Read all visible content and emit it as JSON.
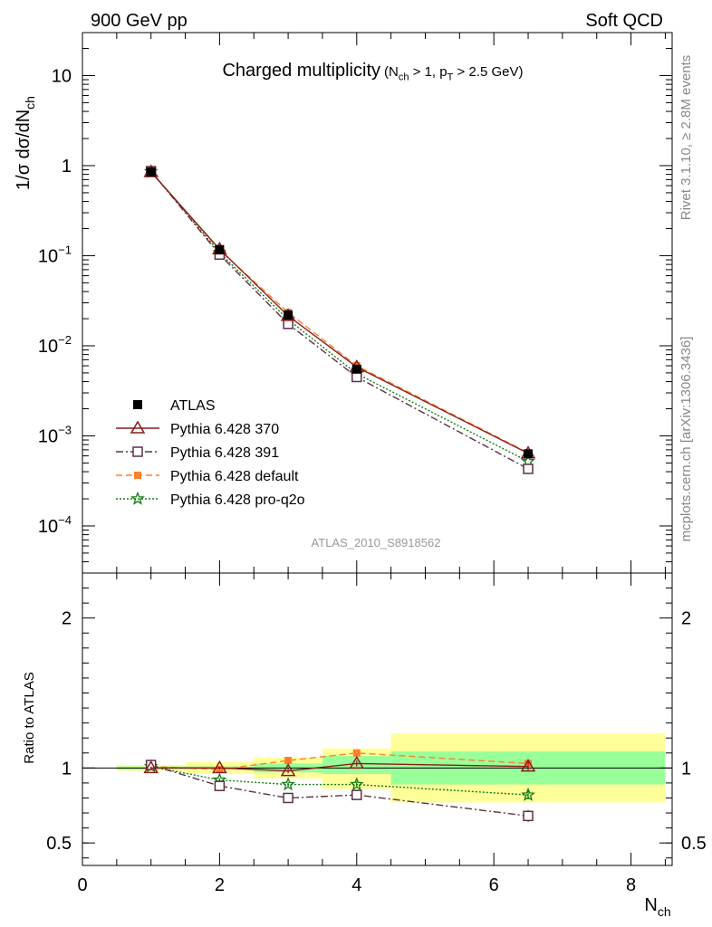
{
  "header": {
    "left": "900 GeV pp",
    "right": "Soft QCD"
  },
  "side_text": {
    "top": "Rivet 3.1.10, ≥ 2.8M events",
    "bottom": "mcplots.cern.ch [arXiv:1306.3436]"
  },
  "analysis_ref": "ATLAS_2010_S8918562",
  "colors": {
    "atlas": "#000000",
    "p370": "#8b1a1a",
    "p391": "#5c3049",
    "default": "#ff7f2a",
    "proq2o": "#127d12",
    "band_stat": "#99ff99",
    "band_tot": "#ffff99"
  },
  "chart_data": [
    {
      "type": "scatter",
      "title": "Charged multiplicity",
      "title_sub": "(N_ch > 1, p_T > 2.5 GeV)",
      "ylabel": "1/σ dσ/dN_ch",
      "yscale": "log",
      "xlim": [
        0,
        8.6
      ],
      "ylim": [
        3e-05,
        30
      ],
      "ytick_labels": [
        {
          "value": 10,
          "base": "10",
          "exp": ""
        },
        {
          "value": 1,
          "base": "1",
          "exp": ""
        },
        {
          "value": 0.1,
          "base": "10",
          "exp": "−1"
        },
        {
          "value": 0.01,
          "base": "10",
          "exp": "−2"
        },
        {
          "value": 0.001,
          "base": "10",
          "exp": "−3"
        },
        {
          "value": 0.0001,
          "base": "10",
          "exp": "−4"
        }
      ],
      "legend_position": "lower-left",
      "series": [
        {
          "name": "ATLAS",
          "x": [
            1,
            2,
            3,
            4,
            6.5
          ],
          "y": [
            0.85,
            0.117,
            0.022,
            0.0055,
            0.00063
          ]
        },
        {
          "name": "Pythia 6.428 370",
          "x": [
            1,
            2,
            3,
            4,
            6.5
          ],
          "y": [
            0.85,
            0.118,
            0.0215,
            0.0058,
            0.00064
          ]
        },
        {
          "name": "Pythia 6.428 391",
          "x": [
            1,
            2,
            3,
            4,
            6.5
          ],
          "y": [
            0.87,
            0.103,
            0.0175,
            0.0045,
            0.00043
          ]
        },
        {
          "name": "Pythia 6.428 default",
          "x": [
            1,
            2,
            3,
            4,
            6.5
          ],
          "y": [
            0.86,
            0.115,
            0.0235,
            0.006,
            0.00065
          ]
        },
        {
          "name": "Pythia 6.428 pro-q2o",
          "x": [
            1,
            2,
            3,
            4,
            6.5
          ],
          "y": [
            0.86,
            0.108,
            0.0195,
            0.0049,
            0.00052
          ]
        }
      ]
    },
    {
      "type": "line",
      "ylabel": "Ratio to ATLAS",
      "xlabel": "N_ch",
      "xlim": [
        0,
        8.6
      ],
      "ylim": [
        0.35,
        2.3
      ],
      "yticks": [
        0.5,
        1,
        2
      ],
      "ytick_labels": [
        "0.5",
        "1",
        "2"
      ],
      "xticks": [
        0,
        2,
        4,
        6,
        8
      ],
      "xtick_labels": [
        "0",
        "2",
        "4",
        "6",
        "8"
      ],
      "bands": [
        {
          "xlo": 0.5,
          "xhi": 1.5,
          "stat": [
            0.99,
            1.01
          ],
          "total": [
            0.98,
            1.02
          ]
        },
        {
          "xlo": 1.5,
          "xhi": 2.5,
          "stat": [
            0.99,
            1.01
          ],
          "total": [
            0.96,
            1.04
          ]
        },
        {
          "xlo": 2.5,
          "xhi": 3.5,
          "stat": [
            0.97,
            1.03
          ],
          "total": [
            0.93,
            1.07
          ]
        },
        {
          "xlo": 3.5,
          "xhi": 4.5,
          "stat": [
            0.96,
            1.08
          ],
          "total": [
            0.86,
            1.13
          ]
        },
        {
          "xlo": 4.5,
          "xhi": 8.5,
          "stat": [
            0.89,
            1.11
          ],
          "total": [
            0.77,
            1.23
          ]
        }
      ],
      "series": [
        {
          "name": "Pythia 6.428 370",
          "x": [
            1,
            2,
            3,
            4,
            6.5
          ],
          "y": [
            1.0,
            1.0,
            0.98,
            1.03,
            1.01
          ],
          "err": [
            0.01,
            0.01,
            0.015,
            0.02,
            0.03
          ]
        },
        {
          "name": "Pythia 6.428 391",
          "x": [
            1,
            2,
            3,
            4,
            6.5
          ],
          "y": [
            1.02,
            0.88,
            0.8,
            0.82,
            0.68
          ],
          "err": [
            0.01,
            0.01,
            0.015,
            0.02,
            0.04
          ]
        },
        {
          "name": "Pythia 6.428 default",
          "x": [
            1,
            2,
            3,
            4,
            6.5
          ],
          "y": [
            1.01,
            0.99,
            1.05,
            1.1,
            1.03
          ],
          "err": [
            0.01,
            0.01,
            0.015,
            0.02,
            0.03
          ]
        },
        {
          "name": "Pythia 6.428 pro-q2o",
          "x": [
            1,
            2,
            3,
            4,
            6.5
          ],
          "y": [
            1.01,
            0.92,
            0.89,
            0.89,
            0.82
          ],
          "err": [
            0.01,
            0.01,
            0.015,
            0.02,
            0.03
          ]
        }
      ]
    }
  ]
}
